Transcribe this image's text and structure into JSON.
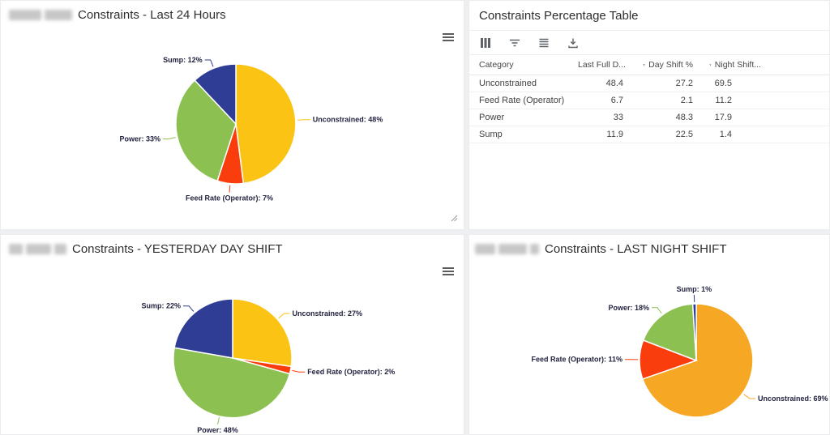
{
  "page": {
    "background": "#edeff2"
  },
  "panel_last24": {
    "title": "Constraints - Last 24 Hours",
    "title_prefix_redacted": true
  },
  "panel_table": {
    "title": "Constraints Percentage Table"
  },
  "panel_day": {
    "title": "Constraints - YESTERDAY DAY SHIFT",
    "title_prefix_redacted": true
  },
  "panel_night": {
    "title": "Constraints - LAST NIGHT SHIFT",
    "title_prefix_redacted": true
  },
  "icons": {
    "toolbar": [
      "columns-icon",
      "filter-icon",
      "row-density-icon",
      "download-icon"
    ],
    "panel_menu": "hamburger-menu-icon",
    "column_filter": "funnel-icon",
    "corner": "resize-grip-icon"
  },
  "colors": {
    "gold": "#FBC314",
    "orange": "#F6A724",
    "red": "#FA3D0D",
    "green": "#8CC152",
    "blue": "#2F3D95",
    "label_text": "#232340"
  },
  "chart_data": [
    {
      "id": "constraints-last-24-hours",
      "type": "pie",
      "title": "Constraints - Last 24 Hours",
      "legend_position": "none",
      "label_style": "leader-lines",
      "label_format": "{label}: {pct}%",
      "slices": [
        {
          "label": "Unconstrained",
          "pct": 48,
          "color": "#FBC314"
        },
        {
          "label": "Feed Rate (Operator)",
          "pct": 7,
          "color": "#FA3D0D"
        },
        {
          "label": "Power",
          "pct": 33,
          "color": "#8CC152"
        },
        {
          "label": "Sump",
          "pct": 12,
          "color": "#2F3D95"
        }
      ]
    },
    {
      "id": "constraints-percentage-table",
      "type": "table",
      "title": "Constraints Percentage Table",
      "columns": [
        "Category",
        "Last Full D...",
        "Day Shift %",
        "Night Shift..."
      ],
      "rows": [
        [
          "Unconstrained",
          "48.4",
          "27.2",
          "69.5"
        ],
        [
          "Feed Rate (Operator)",
          "6.7",
          "2.1",
          "11.2"
        ],
        [
          "Power",
          "33",
          "48.3",
          "17.9"
        ],
        [
          "Sump",
          "11.9",
          "22.5",
          "1.4"
        ]
      ]
    },
    {
      "id": "constraints-yesterday-day-shift",
      "type": "pie",
      "title": "Constraints - YESTERDAY DAY SHIFT",
      "legend_position": "none",
      "label_style": "leader-lines",
      "label_format": "{label}: {pct}%",
      "slices": [
        {
          "label": "Unconstrained",
          "pct": 27,
          "color": "#FBC314"
        },
        {
          "label": "Feed Rate (Operator)",
          "pct": 2,
          "color": "#FA3D0D"
        },
        {
          "label": "Power",
          "pct": 48,
          "color": "#8CC152"
        },
        {
          "label": "Sump",
          "pct": 22,
          "color": "#2F3D95"
        }
      ]
    },
    {
      "id": "constraints-last-night-shift",
      "type": "pie",
      "title": "Constraints - LAST NIGHT SHIFT",
      "legend_position": "none",
      "label_style": "leader-lines",
      "label_format": "{label}: {pct}%",
      "slices": [
        {
          "label": "Unconstrained",
          "pct": 69,
          "color": "#F6A724"
        },
        {
          "label": "Feed Rate (Operator)",
          "pct": 11,
          "color": "#FA3D0D"
        },
        {
          "label": "Power",
          "pct": 18,
          "color": "#8CC152"
        },
        {
          "label": "Sump",
          "pct": 1,
          "color": "#2F3D95"
        }
      ]
    }
  ]
}
